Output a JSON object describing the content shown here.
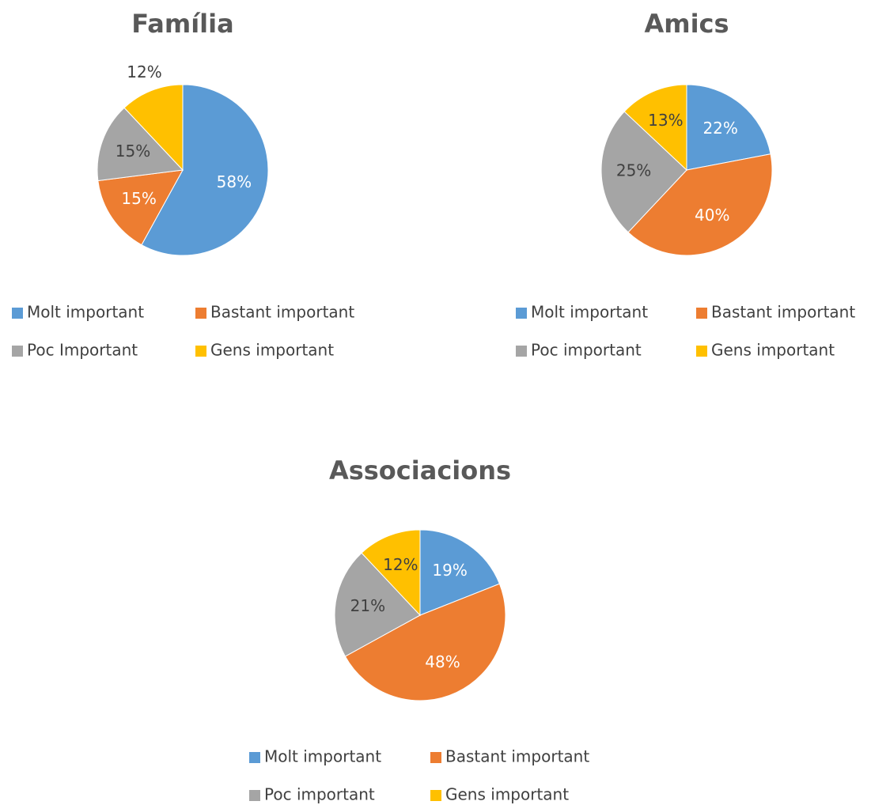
{
  "chart_data": [
    {
      "type": "pie",
      "title": "Família",
      "categories": [
        "Molt important",
        "Bastant important",
        "Poc Important",
        "Gens important"
      ],
      "values": [
        58,
        15,
        15,
        12
      ],
      "value_labels": [
        "58%",
        "15%",
        "15%",
        "12%"
      ],
      "colors": [
        "#5b9bd5",
        "#ed7d31",
        "#a5a5a5",
        "#ffc000"
      ]
    },
    {
      "type": "pie",
      "title": "Amics",
      "categories": [
        "Molt important",
        "Bastant important",
        "Poc important",
        "Gens important"
      ],
      "values": [
        22,
        40,
        25,
        13
      ],
      "value_labels": [
        "22%",
        "40%",
        "25%",
        "13%"
      ],
      "colors": [
        "#5b9bd5",
        "#ed7d31",
        "#a5a5a5",
        "#ffc000"
      ]
    },
    {
      "type": "pie",
      "title": "Associacions",
      "categories": [
        "Molt important",
        "Bastant important",
        "Poc important",
        "Gens important"
      ],
      "values": [
        19,
        48,
        21,
        12
      ],
      "value_labels": [
        "19%",
        "48%",
        "21%",
        "12%"
      ],
      "colors": [
        "#5b9bd5",
        "#ed7d31",
        "#a5a5a5",
        "#ffc000"
      ]
    }
  ]
}
